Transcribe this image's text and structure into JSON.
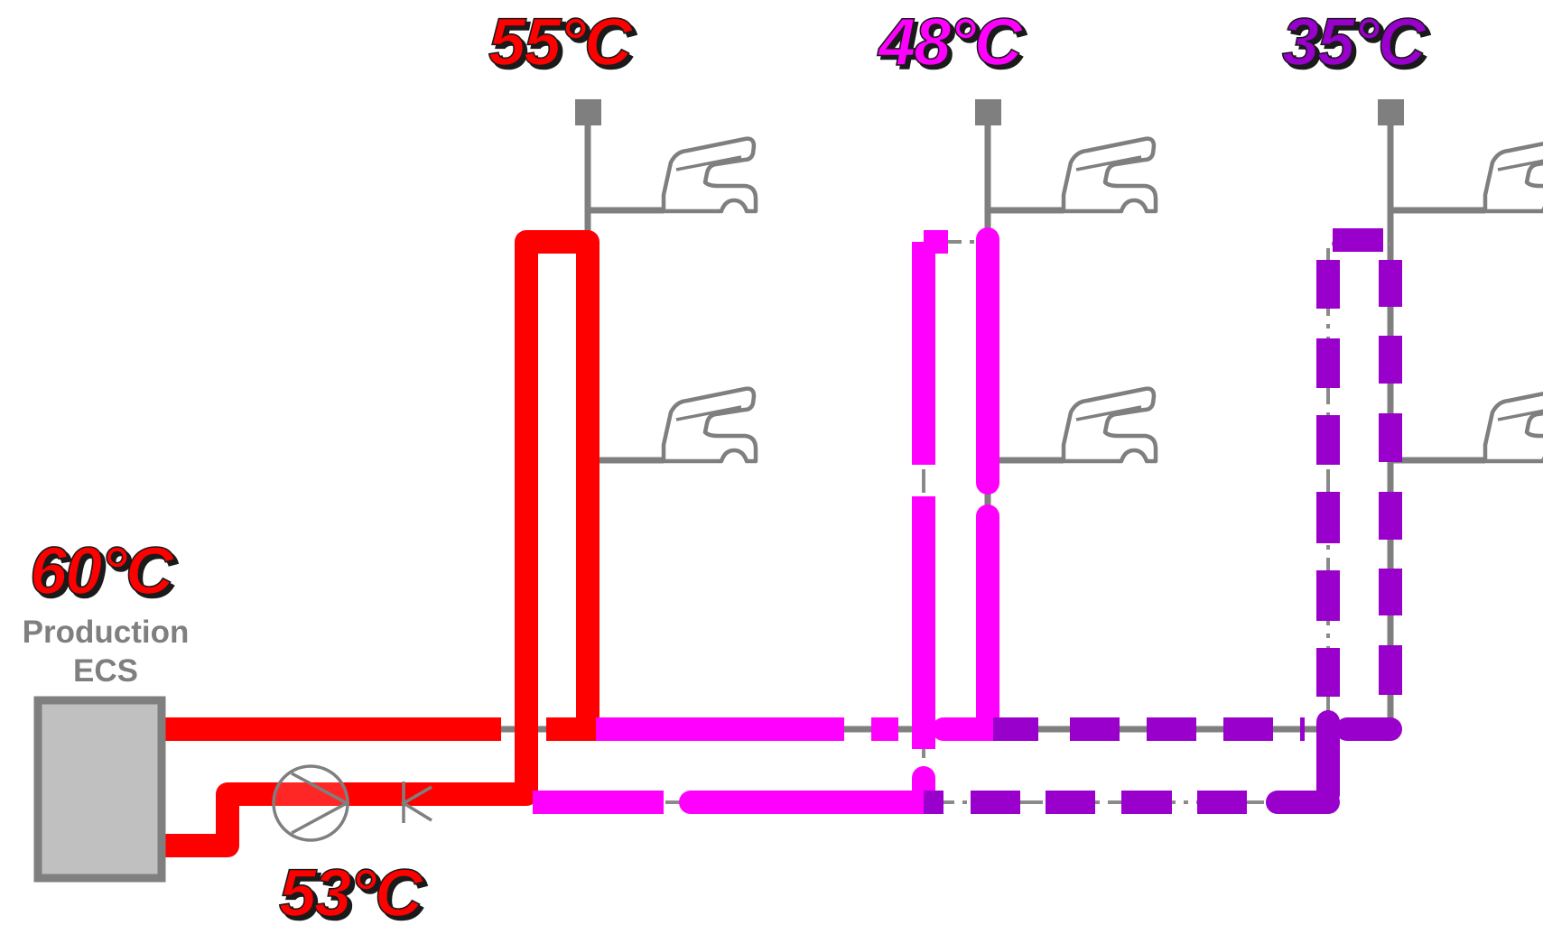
{
  "labels": {
    "riser_red_temp": "55°C",
    "riser_magenta_temp": "48°C",
    "riser_purple_temp": "35°C",
    "production_temp": "60°C",
    "production_line1": "Production",
    "production_line2": "ECS",
    "return_temp": "53°C"
  },
  "colors": {
    "hot": "#ff0000",
    "warm": "#ff00ff",
    "cool": "#9900cc",
    "grey_pipe": "#7f7f7f",
    "tank_fill": "#c0c0c0",
    "tank_border": "#7f7f7f",
    "label_shadow": "#1a1a1a"
  },
  "icons": {
    "faucet": "faucet-icon",
    "pump": "circulation-pump-icon",
    "valve": "check-valve-icon",
    "cap": "riser-end-cap-icon",
    "tank": "hot-water-production-unit"
  }
}
